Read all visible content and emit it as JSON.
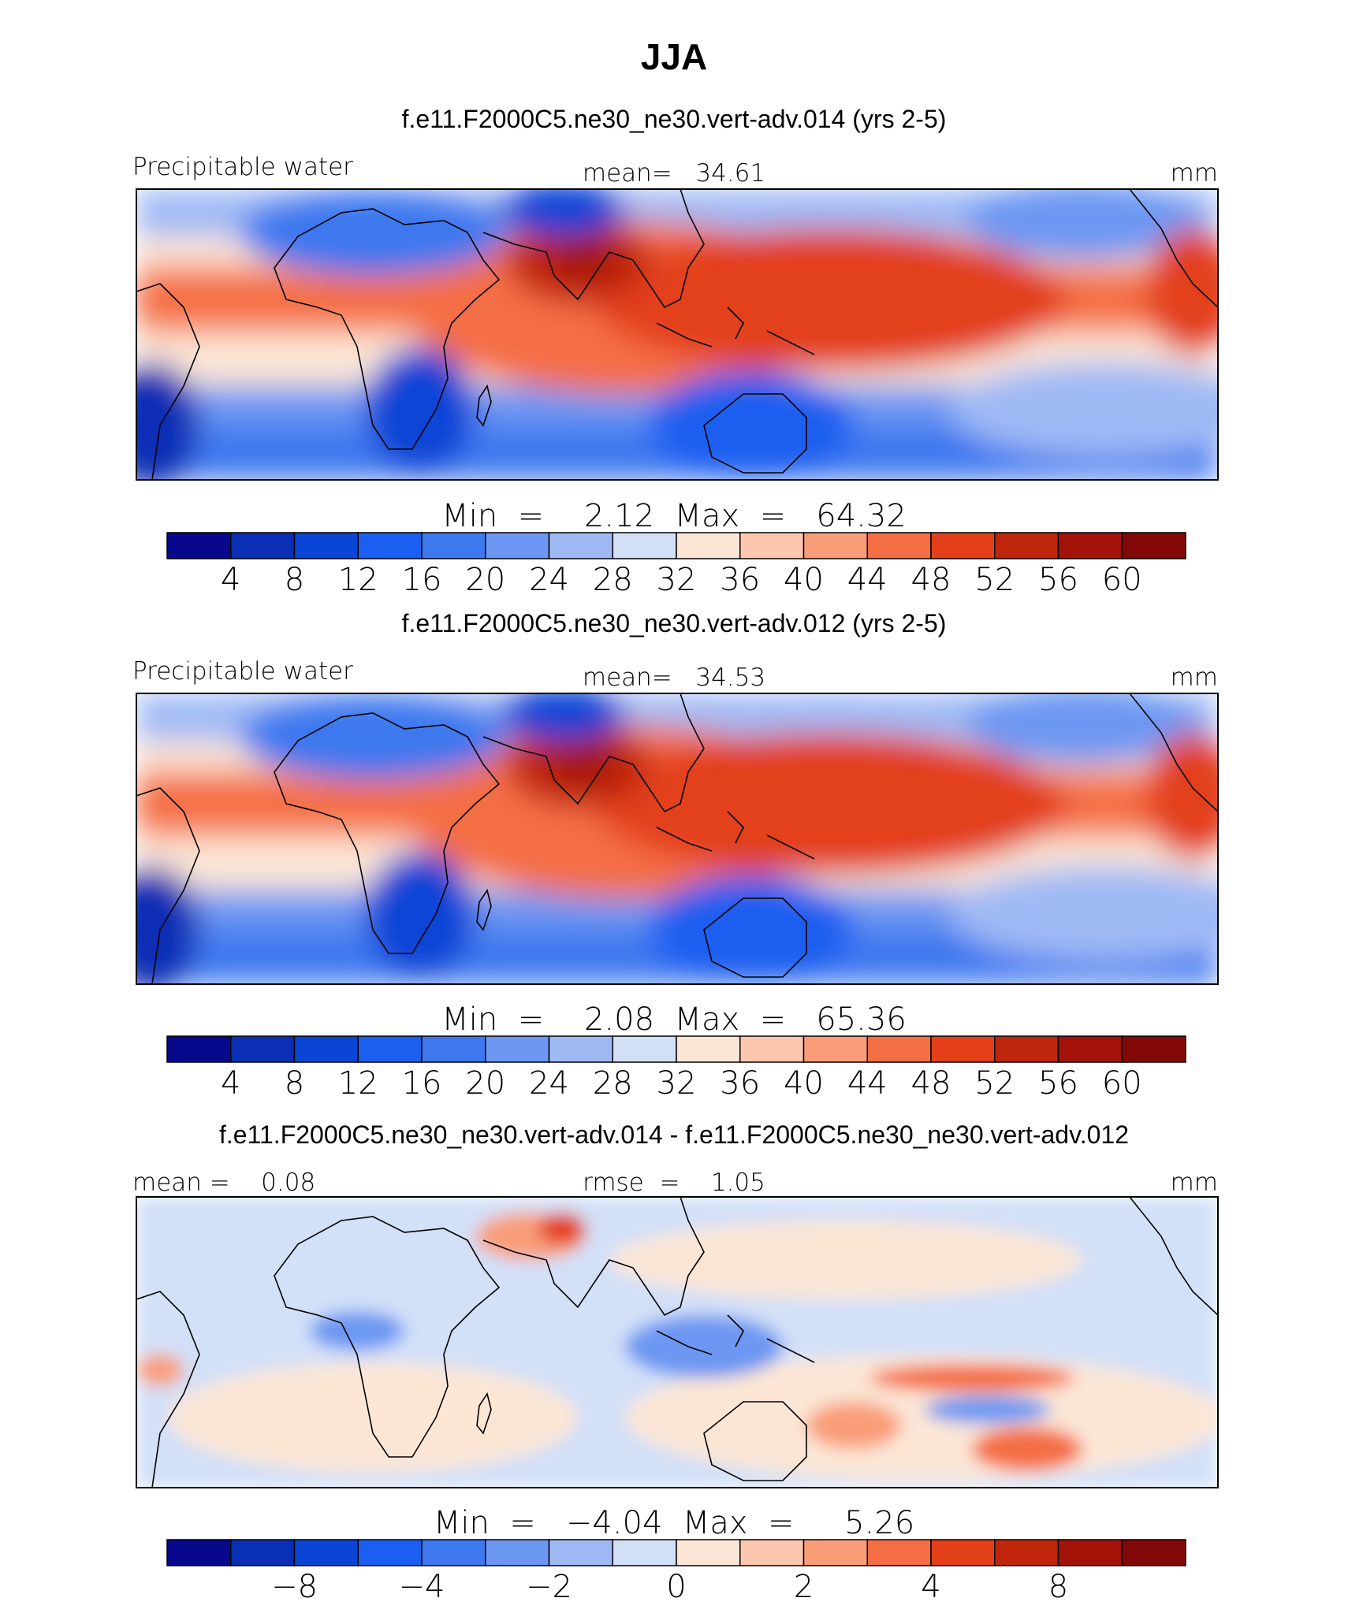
{
  "main_title": "JJA",
  "panels": [
    {
      "id": "p1",
      "title": "f.e11.F2000C5.ne30_ne30.vert-adv.014 (yrs 2-5)",
      "left_label": "Precipitable water",
      "center_label": "mean=   34.61",
      "right_label": "mm",
      "minmax": "Min  =    2.12  Max  =   64.32",
      "colorbar_ticks": [
        "4",
        "8",
        "12",
        "16",
        "20",
        "24",
        "28",
        "32",
        "36",
        "40",
        "44",
        "48",
        "52",
        "56",
        "60"
      ],
      "colorbar_tick_slots": [
        1,
        2,
        3,
        4,
        5,
        6,
        7,
        8,
        9,
        10,
        11,
        12,
        13,
        14,
        15
      ]
    },
    {
      "id": "p2",
      "title": "f.e11.F2000C5.ne30_ne30.vert-adv.012 (yrs 2-5)",
      "left_label": "Precipitable water",
      "center_label": "mean=   34.53",
      "right_label": "mm",
      "minmax": "Min  =    2.08  Max  =   65.36",
      "colorbar_ticks": [
        "4",
        "8",
        "12",
        "16",
        "20",
        "24",
        "28",
        "32",
        "36",
        "40",
        "44",
        "48",
        "52",
        "56",
        "60"
      ],
      "colorbar_tick_slots": [
        1,
        2,
        3,
        4,
        5,
        6,
        7,
        8,
        9,
        10,
        11,
        12,
        13,
        14,
        15
      ]
    },
    {
      "id": "p3",
      "title": "f.e11.F2000C5.ne30_ne30.vert-adv.014 - f.e11.F2000C5.ne30_ne30.vert-adv.012",
      "left_label": "mean =    0.08",
      "center_label": "rmse  =    1.05",
      "right_label": "mm",
      "minmax": "Min  =   −4.04  Max  =     5.26",
      "colorbar_ticks": [
        "−8",
        "−4",
        "−2",
        "0",
        "2",
        "4",
        "8"
      ],
      "colorbar_tick_slots": [
        2,
        4,
        6,
        8,
        10,
        12,
        14
      ]
    }
  ],
  "colorbar_colors": [
    "#08088c",
    "#0a2fb5",
    "#0b45d6",
    "#1a5ff0",
    "#3e78ef",
    "#6c97f2",
    "#9fb9f5",
    "#d2e0f8",
    "#fbe6d6",
    "#fcc7ae",
    "#f99d78",
    "#f46e45",
    "#e3401a",
    "#c0260c",
    "#a3130a",
    "#820808"
  ]
}
